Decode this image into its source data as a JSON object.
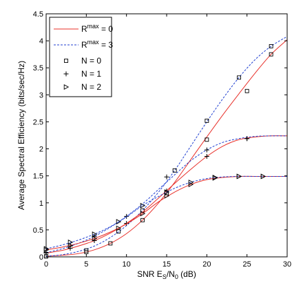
{
  "chart_data": {
    "type": "line",
    "xlabel": {
      "base": "SNR E",
      "sub1": "S",
      "mid": "/N",
      "sub2": "0",
      "tail": " (dB)"
    },
    "ylabel": "Average Spectral Efficiency (bits/sec/Hz)",
    "xlim": [
      0,
      30
    ],
    "ylim": [
      0,
      4.5
    ],
    "xticks": [
      0,
      5,
      10,
      15,
      20,
      25,
      30
    ],
    "yticks": [
      0,
      0.5,
      1,
      1.5,
      2,
      2.5,
      3,
      3.5,
      4,
      4.5
    ],
    "xtick_labels": [
      "0",
      "5",
      "10",
      "15",
      "20",
      "25",
      "30"
    ],
    "ytick_labels": [
      "0",
      "0.5",
      "1",
      "1.5",
      "2",
      "2.5",
      "3",
      "3.5",
      "4",
      "4.5"
    ],
    "grid": false,
    "legend": {
      "placement": "top-left",
      "line_entries": [
        {
          "label_pre": "R",
          "label_sup": "max",
          "label_post": " = 0",
          "color": "#e8302a",
          "dash": "solid"
        },
        {
          "label_pre": "R",
          "label_sup": "max",
          "label_post": " = 3",
          "color": "#1f3fd1",
          "dash": "dashed"
        }
      ],
      "marker_entries": [
        {
          "label": "N = 0",
          "marker": "square"
        },
        {
          "label": "N = 1",
          "marker": "plus"
        },
        {
          "label": "N = 2",
          "marker": "triangle-right"
        }
      ]
    },
    "series": [
      {
        "group": "N = 0",
        "style": "R=0",
        "color": "#e8302a",
        "dash": "solid",
        "marker": "square",
        "x": [
          0,
          2,
          4,
          6,
          8,
          10,
          12,
          14,
          16,
          18,
          20,
          22,
          24,
          26,
          28,
          30
        ],
        "y": [
          0.01,
          0.03,
          0.06,
          0.13,
          0.25,
          0.43,
          0.68,
          1.0,
          1.38,
          1.8,
          2.22,
          2.63,
          3.02,
          3.4,
          3.75,
          4.02
        ],
        "marker_x": [
          0,
          5,
          8,
          12,
          15,
          20,
          25,
          28
        ],
        "marker_y": [
          0.01,
          0.09,
          0.25,
          0.68,
          1.18,
          2.17,
          3.07,
          3.75
        ]
      },
      {
        "group": "N = 0",
        "style": "R=3",
        "color": "#1f3fd1",
        "dash": "dashed",
        "marker": "square",
        "x": [
          0,
          2,
          4,
          6,
          8,
          10,
          12,
          14,
          16,
          18,
          20,
          22,
          24,
          26,
          28,
          30
        ],
        "y": [
          0.01,
          0.04,
          0.1,
          0.2,
          0.36,
          0.58,
          0.86,
          1.2,
          1.6,
          2.05,
          2.5,
          2.93,
          3.32,
          3.65,
          3.9,
          4.08
        ],
        "marker_x": [
          0,
          5,
          9,
          12,
          16,
          20,
          24,
          28
        ],
        "marker_y": [
          0.01,
          0.12,
          0.47,
          0.86,
          1.6,
          2.52,
          3.32,
          3.9
        ]
      },
      {
        "group": "N = 1",
        "style": "R=0",
        "color": "#e8302a",
        "dash": "solid",
        "marker": "plus",
        "x": [
          0,
          2,
          4,
          6,
          8,
          10,
          12,
          14,
          16,
          18,
          20,
          22,
          24,
          26,
          28,
          30
        ],
        "y": [
          0.07,
          0.12,
          0.2,
          0.3,
          0.44,
          0.62,
          0.83,
          1.09,
          1.36,
          1.62,
          1.86,
          2.05,
          2.17,
          2.22,
          2.24,
          2.24
        ],
        "marker_x": [
          0,
          3,
          6,
          10,
          15,
          20,
          25
        ],
        "marker_y": [
          0.07,
          0.16,
          0.3,
          0.62,
          1.22,
          1.86,
          2.19
        ]
      },
      {
        "group": "N = 1",
        "style": "R=3",
        "color": "#1f3fd1",
        "dash": "dashed",
        "marker": "plus",
        "x": [
          0,
          2,
          4,
          6,
          8,
          10,
          12,
          14,
          16,
          18,
          20,
          22,
          24,
          26,
          28,
          30
        ],
        "y": [
          0.08,
          0.15,
          0.25,
          0.38,
          0.55,
          0.75,
          0.98,
          1.25,
          1.52,
          1.78,
          1.98,
          2.12,
          2.19,
          2.23,
          2.24,
          2.24
        ],
        "marker_x": [
          0,
          3,
          6,
          10,
          15,
          20,
          25
        ],
        "marker_y": [
          0.08,
          0.2,
          0.38,
          0.75,
          1.48,
          1.98,
          2.19
        ]
      },
      {
        "group": "N = 2",
        "style": "R=0",
        "color": "#e8302a",
        "dash": "solid",
        "marker": "triangle-right",
        "x": [
          0,
          2,
          4,
          6,
          8,
          10,
          12,
          14,
          16,
          18,
          20,
          22,
          24,
          26,
          28,
          30
        ],
        "y": [
          0.13,
          0.18,
          0.25,
          0.34,
          0.46,
          0.61,
          0.8,
          1.02,
          1.2,
          1.34,
          1.43,
          1.47,
          1.49,
          1.49,
          1.49,
          1.49
        ],
        "marker_x": [
          0,
          3,
          6,
          9,
          12,
          15,
          18,
          21,
          24,
          27
        ],
        "marker_y": [
          0.13,
          0.21,
          0.34,
          0.53,
          0.8,
          1.13,
          1.34,
          1.46,
          1.49,
          1.49
        ]
      },
      {
        "group": "N = 2",
        "style": "R=3",
        "color": "#1f3fd1",
        "dash": "dashed",
        "marker": "triangle-right",
        "x": [
          0,
          2,
          4,
          6,
          8,
          10,
          12,
          14,
          16,
          18,
          20,
          22,
          24,
          26,
          28,
          30
        ],
        "y": [
          0.15,
          0.22,
          0.31,
          0.42,
          0.56,
          0.74,
          0.95,
          1.12,
          1.27,
          1.38,
          1.45,
          1.48,
          1.49,
          1.49,
          1.49,
          1.49
        ],
        "marker_x": [
          0,
          3,
          6,
          9,
          12,
          15,
          18,
          21,
          24,
          27
        ],
        "marker_y": [
          0.15,
          0.27,
          0.42,
          0.65,
          0.95,
          1.2,
          1.38,
          1.47,
          1.49,
          1.49
        ]
      }
    ]
  }
}
